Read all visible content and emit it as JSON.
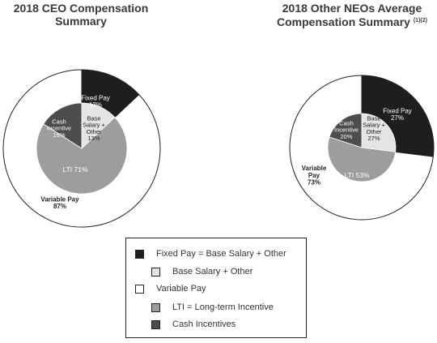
{
  "titles": {
    "ceo": [
      "2018 CEO Compensation",
      "Summary"
    ],
    "neo": [
      "2018 Other NEOs Average",
      "Compensation Summary"
    ],
    "neo_footnote": "(1)(2)"
  },
  "colors": {
    "fixed_pay": "#1e1e1e",
    "base_salary_other": "#e4e4e4",
    "variable_pay": "#ffffff",
    "lti": "#9d9d9d",
    "cash_incentives": "#4d4d4d",
    "outline": "#222222"
  },
  "legend": [
    {
      "label": "Fixed Pay = Base Salary + Other",
      "color": "#1e1e1e"
    },
    {
      "label": "Base Salary + Other",
      "color": "#e4e4e4"
    },
    {
      "label": "Variable Pay",
      "color": "#ffffff"
    },
    {
      "label": "LTI = Long-term Incentive",
      "color": "#9d9d9d"
    },
    {
      "label": "Cash Incentives",
      "color": "#4d4d4d"
    }
  ],
  "chart_data": [
    {
      "type": "pie",
      "title": "2018 CEO Compensation Summary",
      "outer_ring": [
        {
          "name": "Fixed Pay",
          "value": 13,
          "lines": [
            "Fixed Pay",
            "13%"
          ]
        },
        {
          "name": "Variable Pay",
          "value": 87,
          "lines": [
            "Variable Pay",
            "87%"
          ]
        }
      ],
      "inner_pie": [
        {
          "name": "Base Salary + Other",
          "value": 13,
          "lines": [
            "Base",
            "Salary +",
            "Other",
            "13%"
          ]
        },
        {
          "name": "LTI",
          "value": 71,
          "lines": [
            "LTI 71%"
          ]
        },
        {
          "name": "Cash Incentive",
          "value": 16,
          "lines": [
            "Cash",
            "Incentive",
            "16%"
          ]
        }
      ]
    },
    {
      "type": "pie",
      "title": "2018 Other NEOs Average Compensation Summary",
      "outer_ring": [
        {
          "name": "Fixed Pay",
          "value": 27,
          "lines": [
            "Fixed Pay",
            "27%"
          ]
        },
        {
          "name": "Variable Pay",
          "value": 73,
          "lines": [
            "Variable",
            "Pay",
            "73%"
          ]
        }
      ],
      "inner_pie": [
        {
          "name": "Base Salary + Other",
          "value": 27,
          "lines": [
            "Base",
            "Salary +",
            "Other",
            "27%"
          ]
        },
        {
          "name": "LTI",
          "value": 53,
          "lines": [
            "LTI 53%"
          ]
        },
        {
          "name": "Cash Incentive",
          "value": 20,
          "lines": [
            "Cash",
            "Incentive",
            "20%"
          ]
        }
      ]
    }
  ]
}
